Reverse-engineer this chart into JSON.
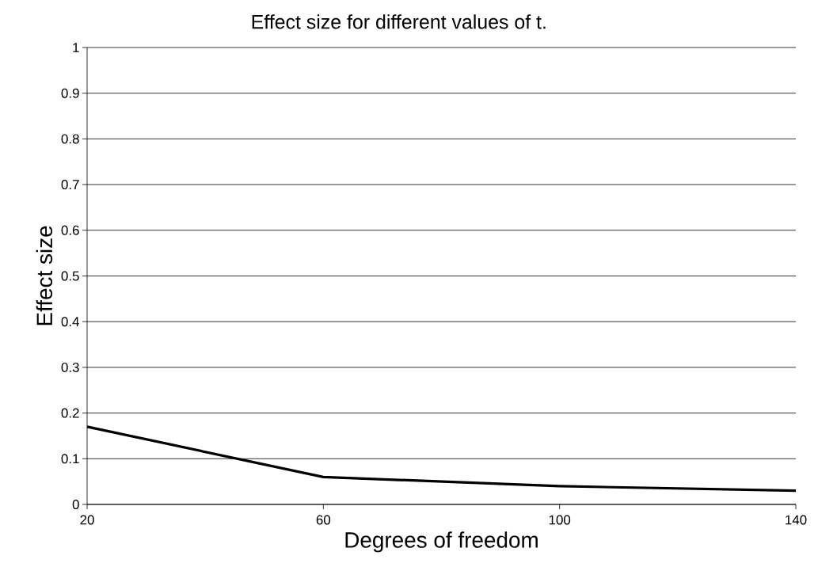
{
  "chart_data": {
    "type": "line",
    "title": "Effect size for different values of t.",
    "xlabel": "Degrees of freedom",
    "ylabel": "Effect size",
    "x": [
      20,
      60,
      100,
      140
    ],
    "series": [
      {
        "color": "#000000",
        "values": [
          0.17,
          0.06,
          0.04,
          0.03
        ]
      }
    ],
    "xlim": [
      20,
      140
    ],
    "xticks": [
      20,
      60,
      100,
      140
    ],
    "ylim": [
      0,
      1
    ],
    "yticks": [
      0,
      0.1,
      0.2,
      0.3,
      0.4,
      0.5,
      0.6,
      0.7,
      0.8,
      0.9,
      1
    ],
    "grid": "y",
    "marker": "none",
    "line_style": "solid"
  }
}
